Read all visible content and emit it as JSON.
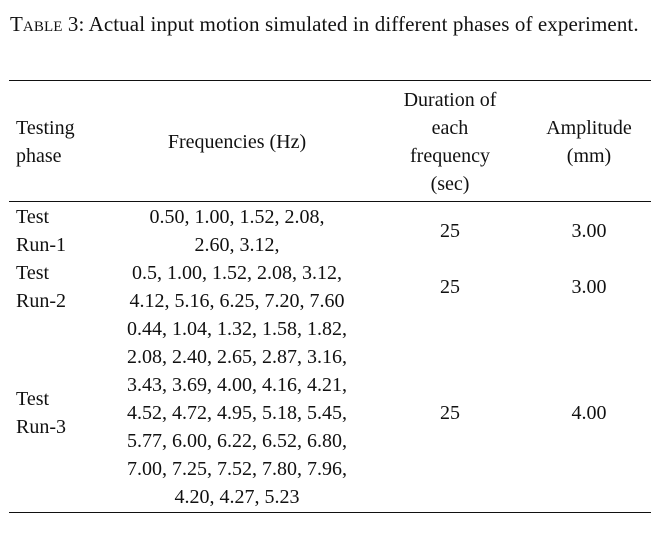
{
  "caption": {
    "label": "Table 3:",
    "text": " Actual input motion simulated in different phases of experiment."
  },
  "table": {
    "headers": {
      "phase": [
        "Testing",
        "phase"
      ],
      "frequencies": "Frequencies (Hz)",
      "duration": [
        "Duration of",
        "each",
        "frequency",
        "(sec)"
      ],
      "amplitude": [
        "Amplitude",
        "(mm)"
      ]
    },
    "rows": [
      {
        "phase": [
          "Test",
          "Run-1"
        ],
        "frequencies": [
          "0.50, 1.00, 1.52, 2.08,",
          "2.60, 3.12,"
        ],
        "duration": "25",
        "amplitude": "3.00"
      },
      {
        "phase": [
          "Test",
          "Run-2"
        ],
        "frequencies": [
          "0.5, 1.00, 1.52, 2.08, 3.12,",
          "4.12, 5.16, 6.25, 7.20, 7.60"
        ],
        "duration": "25",
        "amplitude": "3.00"
      },
      {
        "phase": [
          "Test",
          "Run-3"
        ],
        "frequencies": [
          "0.44, 1.04, 1.32, 1.58, 1.82,",
          "2.08, 2.40, 2.65, 2.87, 3.16,",
          "3.43, 3.69, 4.00, 4.16, 4.21,",
          "4.52, 4.72, 4.95, 5.18, 5.45,",
          "5.77, 6.00, 6.22, 6.52, 6.80,",
          "7.00, 7.25, 7.52, 7.80, 7.96,",
          "4.20, 4.27, 5.23"
        ],
        "duration": "25",
        "amplitude": "4.00"
      }
    ]
  }
}
